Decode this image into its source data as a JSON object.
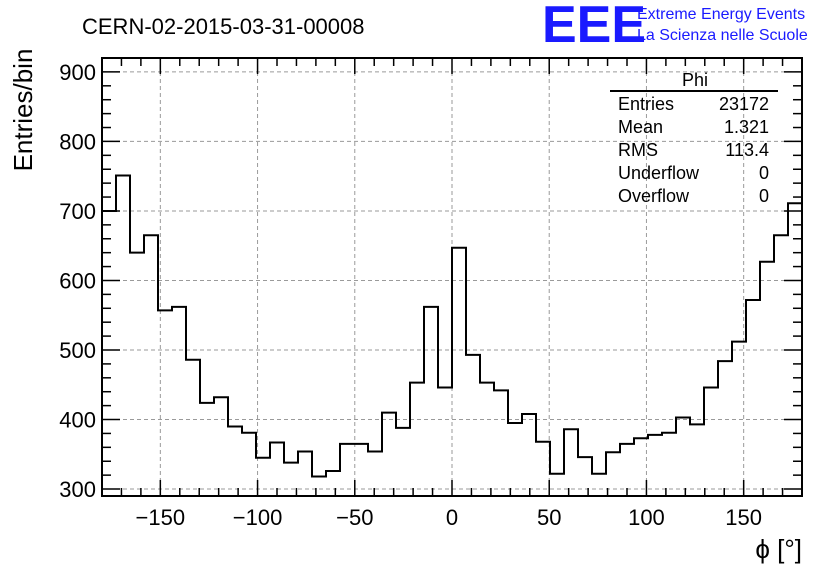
{
  "header": {
    "run_title": "CERN-02-2015-03-31-00008",
    "logo": "EEE",
    "logo_line1": "Extreme Energy Events",
    "logo_line2": "La Scienza nelle Scuole"
  },
  "stats_box": {
    "title": "Phi",
    "rows": [
      {
        "label": "Entries",
        "value": "23172"
      },
      {
        "label": "Mean",
        "value": "1.321"
      },
      {
        "label": "RMS",
        "value": "113.4"
      },
      {
        "label": "Underflow",
        "value": "0"
      },
      {
        "label": "Overflow",
        "value": "0"
      }
    ]
  },
  "chart_data": {
    "type": "bar",
    "histogram": true,
    "xlabel": "ϕ [°]",
    "ylabel": "Entries/bin",
    "xlim": [
      -180,
      180
    ],
    "ylim": [
      290,
      920
    ],
    "bin_width": 7.2,
    "x_ticks": [
      -150,
      -100,
      -50,
      0,
      50,
      100,
      150
    ],
    "x_tick_labels": [
      "−150",
      "−100",
      "−50",
      "0",
      "50",
      "100",
      "150"
    ],
    "y_ticks": [
      300,
      400,
      500,
      600,
      700,
      800,
      900
    ],
    "y_tick_labels": [
      "300",
      "400",
      "500",
      "600",
      "700",
      "800",
      "900"
    ],
    "grid": true,
    "legend": "top-right",
    "values": [
      700,
      751,
      640,
      665,
      557,
      562,
      486,
      424,
      432,
      390,
      381,
      345,
      367,
      338,
      354,
      318,
      326,
      365,
      365,
      354,
      410,
      388,
      453,
      562,
      446,
      647,
      493,
      453,
      442,
      395,
      408,
      368,
      322,
      386,
      346,
      322,
      353,
      365,
      373,
      378,
      381,
      403,
      393,
      446,
      484,
      512,
      572,
      627,
      665,
      711
    ]
  }
}
